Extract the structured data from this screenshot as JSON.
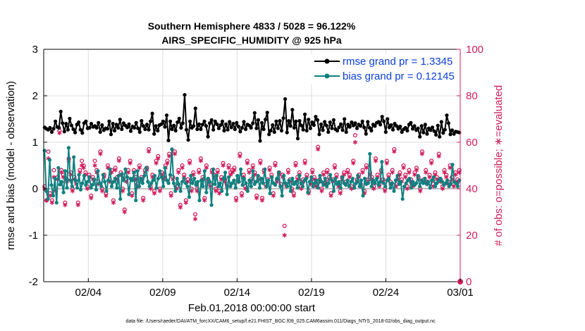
{
  "chart_data": {
    "type": "line",
    "title": "Southern Hemisphere 4833 / 5028 = 96.122%",
    "subtitle": "AIRS_SPECIFIC_HUMIDITY @ 925 hPa",
    "xlabel": "Feb.01,2018 00:00:00 start",
    "ylabel_left": "rmse and bias (model - observation)",
    "ylabel_right": "# of obs: o=possible; ∗=evaluated",
    "footnote": "data file: /Users/raeder/DAI/ATM_forcXX/CAM6_setup/f.e21.FHIST_BGC.f09_025.CAM6assim.011/Diags_NTrS_2018-02/obs_diag_output.nc",
    "xlim": [
      1.0,
      29.0
    ],
    "ylim_left": [
      -2,
      3
    ],
    "ylim_right": [
      0,
      100
    ],
    "x_ticks": [
      {
        "value": 4,
        "label": "02/04"
      },
      {
        "value": 9,
        "label": "02/09"
      },
      {
        "value": 14,
        "label": "02/14"
      },
      {
        "value": 19,
        "label": "02/19"
      },
      {
        "value": 24,
        "label": "02/24"
      },
      {
        "value": 29,
        "label": "03/01"
      }
    ],
    "y_ticks_left": [
      "-2",
      "-1",
      "0",
      "1",
      "2",
      "3"
    ],
    "y_ticks_right": [
      "0",
      "20",
      "40",
      "60",
      "80",
      "100"
    ],
    "grid": true,
    "legend_position": "top-right",
    "colors": {
      "rmse": "#000000",
      "bias": "#0f8080",
      "obs": "#d01c5b",
      "zero_line": "#bfbfbf"
    },
    "series": [
      {
        "name": "rmse grand pr = 1.3345",
        "axis": "left",
        "color": "#000000",
        "values": [
          1.32,
          1.29,
          1.27,
          1.31,
          1.22,
          1.29,
          1.45,
          1.33,
          1.31,
          1.66,
          1.41,
          1.23,
          1.4,
          1.27,
          1.51,
          1.36,
          1.28,
          1.21,
          1.38,
          1.43,
          1.27,
          1.2,
          1.41,
          1.45,
          1.3,
          1.31,
          1.4,
          1.33,
          1.35,
          1.31,
          1.42,
          1.22,
          1.37,
          1.26,
          1.3,
          1.29,
          1.45,
          1.17,
          1.4,
          1.25,
          1.38,
          1.31,
          1.49,
          1.28,
          1.41,
          1.36,
          1.32,
          1.39,
          1.24,
          1.34,
          1.31,
          1.42,
          1.3,
          1.22,
          1.46,
          1.35,
          1.28,
          1.38,
          1.27,
          1.45,
          1.62,
          1.18,
          1.35,
          1.25,
          1.37,
          1.39,
          1.45,
          1.33,
          1.58,
          1.04,
          1.45,
          1.28,
          1.36,
          1.25,
          1.43,
          1.51,
          1.31,
          1.41,
          2.02,
          1.27,
          1.05,
          1.45,
          1.31,
          1.35,
          1.73,
          1.28,
          1.39,
          1.28,
          1.38,
          1.45,
          1.35,
          1.12,
          1.41,
          1.48,
          1.27,
          1.45,
          1.39,
          1.3,
          1.37,
          1.45,
          1.25,
          1.39,
          1.27,
          1.44,
          1.32,
          1.4,
          1.28,
          1.42,
          1.34,
          1.23,
          1.31,
          1.44,
          1.28,
          1.38,
          1.36,
          1.31,
          1.41,
          1.63,
          1.3,
          1.48,
          1.03,
          1.42,
          1.28,
          1.49,
          1.64,
          1.17,
          1.25,
          1.37,
          1.22,
          1.45,
          1.3,
          1.46,
          1.25,
          1.52,
          1.93,
          1.21,
          1.46,
          1.35,
          1.7,
          1.31,
          1.45,
          1.08,
          1.46,
          1.36,
          1.27,
          1.6,
          1.25,
          1.49,
          1.3,
          1.43,
          1.37,
          1.55,
          1.48,
          1.17,
          1.39,
          1.26,
          1.44,
          1.36,
          1.22,
          1.43,
          1.3,
          1.48,
          1.28,
          1.25,
          1.32,
          1.39,
          1.26,
          1.5,
          1.22,
          1.38,
          1.33,
          1.43,
          1.36,
          1.41,
          1.3,
          1.38,
          1.35,
          1.45,
          1.32,
          1.18,
          1.44,
          1.31,
          1.25,
          1.38,
          1.35,
          1.42,
          1.44,
          1.38,
          1.55,
          1.45,
          1.22,
          1.5,
          1.32,
          1.37,
          1.27,
          1.4,
          1.35,
          1.29,
          1.34,
          1.22,
          1.28,
          1.31,
          1.25,
          1.38,
          1.42,
          1.29,
          1.35,
          1.26,
          1.3,
          1.12,
          1.35,
          1.21,
          1.38,
          1.18,
          1.3,
          1.26,
          1.32,
          1.24,
          1.16,
          1.36,
          1.12,
          1.44,
          1.2,
          1.27,
          1.58,
          1.41,
          1.17,
          1.26,
          1.18,
          1.23,
          1.22,
          1.21
        ]
      },
      {
        "name": "bias grand pr = 0.12145",
        "axis": "left",
        "color": "#0f8080",
        "values": [
          0.82,
          -0.05,
          -0.22,
          0.62,
          0.08,
          -0.15,
          0.22,
          -0.3,
          0.45,
          0.09,
          0.15,
          -0.08,
          0.38,
          0.02,
          0.88,
          0.18,
          0.05,
          0.68,
          0.18,
          0.02,
          0.3,
          -0.02,
          0.12,
          0.28,
          0.08,
          0.15,
          0.25,
          0.02,
          0.09,
          0.2,
          -0.02,
          0.38,
          0.12,
          0.05,
          0.3,
          0.15,
          -0.05,
          0.18,
          0.42,
          0.05,
          0.15,
          0.22,
          0.02,
          0.28,
          -0.22,
          0.32,
          0.18,
          0.42,
          0.25,
          -0.12,
          0.22,
          0.18,
          0.35,
          -0.25,
          0.38,
          0.05,
          0.22,
          0.12,
          0.28,
          0.45,
          0.15,
          0.05,
          0.12,
          0.18,
          0.28,
          0.02,
          0.22,
          0.38,
          0.25,
          0.05,
          0.45,
          0.18,
          0.12,
          0.3,
          0.85,
          0.12,
          -0.05,
          0.22,
          0.1,
          -0.05,
          0.15,
          0.22,
          0.12,
          0.05,
          -0.18,
          0.28,
          0.12,
          0.22,
          0.08,
          0.15,
          -0.25,
          0.18,
          0.05,
          0.38,
          -0.08,
          0.22,
          0.15,
          -0.35,
          0.42,
          0.1,
          0.28,
          0.05,
          0.12,
          -0.05,
          0.22,
          0.35,
          -0.12,
          0.25,
          0.05,
          0.12,
          0.18,
          0.02,
          0.28,
          0.15,
          0.42,
          0.08,
          0.22,
          0.12,
          -0.05,
          0.18,
          0.05,
          0.38,
          0.1,
          0.15,
          0.28,
          0.02,
          0.22,
          0.12,
          0.42,
          0.05,
          0.18,
          -0.1,
          0.25,
          0.12,
          0.08,
          0.22,
          0.35,
          0.05,
          -0.15,
          0.28,
          0.12,
          0.05,
          0.18,
          -0.05,
          0.22,
          0.1,
          0.15,
          0.02,
          0.28,
          0.12,
          0.05,
          0.18,
          0.22,
          -0.08,
          0.15,
          0.25,
          0.05,
          0.12,
          0.18,
          0.02,
          0.28,
          0.15,
          0.08,
          0.22,
          0.05,
          0.12,
          0.3,
          0.18,
          -0.05,
          0.22,
          0.1,
          0.15,
          0.02,
          0.25,
          0.12,
          0.08,
          0.18,
          0.05,
          0.15,
          0.22,
          0.02,
          0.12,
          0.28,
          0.05,
          0.18,
          -0.15,
          0.22,
          0.1,
          0.12,
          0.75,
          0.05,
          0.18,
          0.12,
          0.22,
          0.08,
          0.15,
          0.58,
          0.12,
          0.05,
          0.18,
          0.22,
          0.02,
          0.12,
          -0.05,
          0.18,
          0.28,
          0.1,
          0.15,
          -0.22,
          0.05,
          0.12,
          0.18,
          0.22,
          0.02,
          0.15,
          0.08,
          0.12,
          0.28,
          0.05,
          0.18,
          0.12,
          0.22,
          0.1,
          0.15,
          0.02,
          0.18,
          0.25,
          0.05,
          0.12,
          0.18,
          0.22,
          0.15,
          0.08,
          0.12,
          0.18,
          0.05,
          0.1,
          0.52,
          0.15,
          0.12,
          0.05,
          0.18
        ]
      },
      {
        "name": "possible obs",
        "axis": "right",
        "marker": "o",
        "color": "#d01c5b",
        "values": [
          41,
          35,
          56,
          38,
          35,
          48,
          40,
          45,
          65,
          48,
          46,
          34,
          44,
          53,
          47,
          40,
          45,
          43,
          34,
          48,
          52,
          50,
          47,
          41,
          46,
          37,
          45,
          52,
          48,
          43,
          56,
          40,
          46,
          38,
          50,
          44,
          48,
          35,
          49,
          45,
          53,
          47,
          40,
          31,
          44,
          48,
          52,
          38,
          48,
          45,
          42,
          50,
          45,
          36,
          48,
          49,
          57,
          41,
          46,
          39,
          52,
          54,
          40,
          47,
          45,
          50,
          52,
          55,
          38,
          45,
          56,
          41,
          48,
          33,
          50,
          46,
          35,
          44,
          52,
          40,
          47,
          29,
          40,
          48,
          53,
          45,
          36,
          50,
          44,
          42,
          48,
          46,
          40,
          48,
          39,
          45,
          51,
          44,
          42,
          50,
          47,
          48,
          49,
          36,
          44,
          55,
          38,
          46,
          41,
          52,
          48,
          44,
          50,
          47,
          37,
          45,
          52,
          36,
          48,
          42,
          44,
          49,
          46,
          38,
          51,
          44,
          47,
          42,
          46,
          24,
          42,
          48,
          44,
          40,
          38,
          51,
          45,
          47,
          41,
          44,
          52,
          46,
          39,
          43,
          48,
          45,
          42,
          58,
          44,
          40,
          47,
          43,
          48,
          45,
          38,
          44,
          50,
          46,
          42,
          39,
          45,
          47,
          43,
          48,
          46,
          41,
          52,
          63,
          44,
          46,
          42,
          48,
          39,
          50,
          44,
          47,
          45,
          41,
          53,
          46,
          42,
          48,
          44,
          40,
          52,
          46,
          43,
          48,
          57,
          42,
          45,
          47,
          44,
          50,
          46,
          41,
          48,
          44,
          42,
          47,
          49,
          45,
          40,
          56,
          44,
          48,
          43,
          46,
          52,
          42,
          47,
          45,
          55,
          44,
          41,
          48,
          46,
          43,
          50,
          45,
          42,
          47,
          44,
          48
        ]
      },
      {
        "name": "evaluated obs",
        "axis": "right",
        "marker": "*",
        "color": "#d01c5b",
        "values": [
          40,
          35,
          53,
          37,
          34,
          45,
          39,
          44,
          64,
          47,
          45,
          33,
          43,
          52,
          46,
          39,
          44,
          42,
          33,
          47,
          50,
          49,
          46,
          40,
          45,
          36,
          44,
          50,
          47,
          42,
          55,
          39,
          45,
          37,
          49,
          43,
          47,
          34,
          48,
          44,
          52,
          46,
          39,
          30,
          43,
          47,
          51,
          37,
          47,
          44,
          41,
          49,
          44,
          35,
          47,
          48,
          56,
          40,
          45,
          38,
          51,
          53,
          39,
          46,
          44,
          49,
          51,
          54,
          37,
          44,
          55,
          40,
          47,
          32,
          49,
          45,
          34,
          43,
          51,
          39,
          46,
          27,
          39,
          47,
          52,
          44,
          35,
          49,
          43,
          41,
          47,
          45,
          39,
          47,
          38,
          44,
          50,
          43,
          41,
          49,
          46,
          47,
          48,
          35,
          43,
          54,
          37,
          45,
          40,
          51,
          47,
          43,
          49,
          46,
          36,
          44,
          51,
          35,
          47,
          41,
          43,
          48,
          45,
          37,
          50,
          43,
          46,
          41,
          45,
          20,
          41,
          47,
          43,
          39,
          37,
          50,
          44,
          46,
          40,
          43,
          51,
          45,
          38,
          42,
          47,
          44,
          41,
          57,
          43,
          39,
          46,
          42,
          47,
          44,
          37,
          43,
          49,
          45,
          41,
          38,
          44,
          46,
          42,
          47,
          45,
          40,
          51,
          60,
          43,
          45,
          41,
          47,
          38,
          49,
          43,
          46,
          44,
          40,
          52,
          45,
          41,
          47,
          43,
          39,
          51,
          45,
          42,
          47,
          56,
          41,
          44,
          46,
          43,
          49,
          45,
          40,
          47,
          43,
          41,
          46,
          48,
          44,
          39,
          55,
          43,
          47,
          42,
          45,
          51,
          41,
          46,
          44,
          54,
          43,
          40,
          47,
          45,
          42,
          49,
          44,
          41,
          46,
          43,
          47
        ]
      }
    ]
  }
}
